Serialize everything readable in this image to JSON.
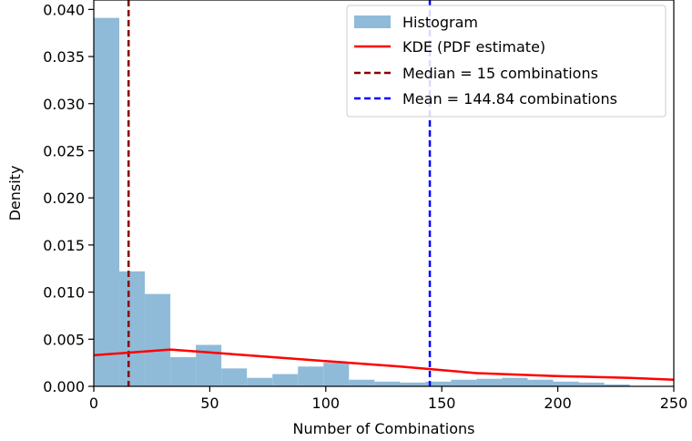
{
  "chart_data": {
    "type": "bar",
    "xlabel": "Number of Combinations",
    "ylabel": "Density",
    "xlim": [
      0,
      250
    ],
    "ylim": [
      0,
      0.041
    ],
    "xticks": [
      0,
      50,
      100,
      150,
      200,
      250
    ],
    "yticks": [
      "0.000",
      "0.005",
      "0.010",
      "0.015",
      "0.020",
      "0.025",
      "0.030",
      "0.035",
      "0.040"
    ],
    "legend_position": "top-right",
    "grid": false,
    "histogram": {
      "name": "Histogram",
      "color": "#8fbbd9",
      "bin_width": 11,
      "bin_edges": [
        0,
        11,
        22,
        33,
        44,
        55,
        66,
        77,
        88,
        99,
        110,
        121,
        132,
        143,
        154,
        165,
        176,
        187,
        198,
        209,
        220,
        231
      ],
      "densities": [
        0.0391,
        0.0122,
        0.0098,
        0.0031,
        0.0044,
        0.0019,
        0.0009,
        0.0013,
        0.0021,
        0.0025,
        0.0007,
        0.0005,
        0.0004,
        0.0005,
        0.0007,
        0.0008,
        0.0009,
        0.0007,
        0.0005,
        0.0004,
        0.0002
      ]
    },
    "kde": {
      "name": "KDE (PDF estimate)",
      "color": "#ff0000",
      "x": [
        0,
        33,
        66,
        99,
        132,
        165,
        198,
        231,
        250
      ],
      "y": [
        0.0033,
        0.0039,
        0.0033,
        0.0027,
        0.0021,
        0.0014,
        0.0011,
        0.0009,
        0.0007
      ]
    },
    "median": {
      "name": "Median = 15 combinations",
      "value": 15,
      "color": "#8b0000"
    },
    "mean": {
      "name": "Mean = 144.84 combinations",
      "value": 144.84,
      "color": "#0000ff"
    }
  }
}
